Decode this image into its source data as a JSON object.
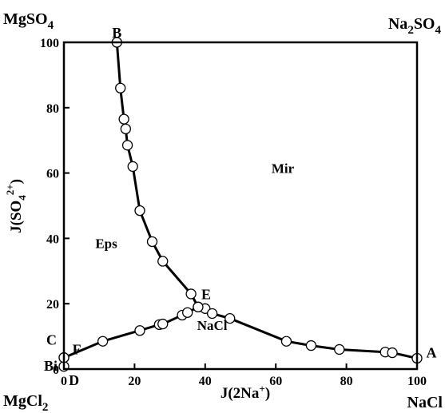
{
  "chart_data": {
    "type": "scatter",
    "xlabel_base": "J(2Na",
    "xlabel_sup": "+",
    "xlabel_close": ")",
    "ylabel_base": "J(SO",
    "ylabel_sub": "4",
    "ylabel_sup": "2+",
    "ylabel_close": ")",
    "xlim": [
      0,
      100
    ],
    "ylim": [
      0,
      100
    ],
    "xticks": [
      0,
      20,
      40,
      60,
      80,
      100
    ],
    "yticks": [
      0,
      20,
      40,
      60,
      80,
      100
    ],
    "corners": {
      "top_left": {
        "base": "MgSO",
        "sub": "4"
      },
      "top_right": {
        "base": "Na",
        "sub1": "2",
        "mid": "SO",
        "sub2": "4"
      },
      "bottom_left": {
        "base": "MgCl",
        "sub": "2"
      },
      "bottom_right": "NaCl"
    },
    "point_labels": [
      {
        "text": "B",
        "x": 15,
        "y": 100
      },
      {
        "text": "E",
        "x": 38,
        "y": 19
      },
      {
        "text": "A",
        "x": 100,
        "y": 3
      },
      {
        "text": "C",
        "x": 0,
        "y": 8
      },
      {
        "text": "F",
        "x": 0.6,
        "y": 4
      },
      {
        "text": "Bi",
        "x": 0,
        "y": 1.5
      },
      {
        "text": "D",
        "x": 1.5,
        "y": 0
      }
    ],
    "regions": [
      {
        "text": "Mir",
        "x": 62,
        "y": 60
      },
      {
        "text": "Eps",
        "x": 12,
        "y": 37
      },
      {
        "text": "NaCl",
        "x": 42,
        "y": 12
      }
    ],
    "series": [
      {
        "points": [
          [
            15,
            100
          ],
          [
            16,
            86
          ],
          [
            17,
            76.5
          ],
          [
            17.5,
            73.5
          ],
          [
            18,
            68.5
          ],
          [
            19.5,
            62
          ],
          [
            21.5,
            48.5
          ],
          [
            25,
            39
          ],
          [
            28,
            33
          ],
          [
            36,
            23
          ],
          [
            38,
            19
          ]
        ]
      },
      {
        "points": [
          [
            38,
            19
          ],
          [
            40,
            18.5
          ],
          [
            42,
            17
          ],
          [
            47,
            15.5
          ],
          [
            63,
            8.5
          ],
          [
            70,
            7.2
          ],
          [
            78,
            6
          ],
          [
            91,
            5.2
          ],
          [
            93,
            5
          ],
          [
            100,
            3.3
          ]
        ]
      },
      {
        "points": [
          [
            0,
            3.5
          ],
          [
            11,
            8.5
          ],
          [
            21.5,
            11.8
          ],
          [
            27,
            13.6
          ],
          [
            28,
            13.8
          ],
          [
            33.5,
            16.5
          ],
          [
            35,
            17.3
          ],
          [
            38,
            19
          ]
        ]
      },
      {
        "points": [
          [
            0,
            0.8
          ],
          [
            0,
            3.5
          ]
        ]
      }
    ],
    "grid": false,
    "legend": "none"
  }
}
